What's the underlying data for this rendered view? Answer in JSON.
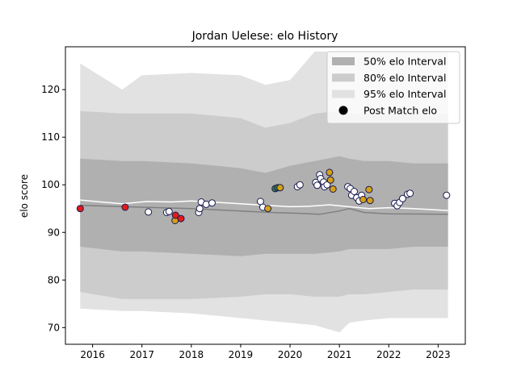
{
  "chart_data": {
    "type": "line",
    "title": "Jordan Uelese: elo History",
    "xlabel": "",
    "ylabel": "elo score",
    "xlim": [
      2015.45,
      2023.55
    ],
    "ylim": [
      66.5,
      129
    ],
    "x_ticks": [
      2016,
      2017,
      2018,
      2019,
      2020,
      2021,
      2022,
      2023
    ],
    "x_tick_labels": [
      "2016",
      "2017",
      "2018",
      "2019",
      "2020",
      "2021",
      "2022",
      "2023"
    ],
    "y_ticks": [
      70,
      80,
      90,
      100,
      110,
      120
    ],
    "y_tick_labels": [
      "70",
      "80",
      "90",
      "100",
      "110",
      "120"
    ],
    "grid": false,
    "legend_position": "top-right",
    "legend": [
      {
        "label": "50% elo Interval",
        "kind": "band",
        "color": "#b0b0b0"
      },
      {
        "label": "80% elo Interval",
        "kind": "band",
        "color": "#cccccc"
      },
      {
        "label": "95% elo Interval",
        "kind": "band",
        "color": "#e2e2e2"
      },
      {
        "label": "Post Match elo",
        "kind": "marker",
        "color": "#000000"
      }
    ],
    "colors": {
      "band95": "#e2e2e2",
      "band80": "#cccccc",
      "band50": "#b0b0b0",
      "mean_line": "#808080",
      "elo_line": "#ffffff",
      "marker_edge": "#1a1a4e",
      "win": "#ffffff",
      "loss": "#e31a1c",
      "draw_gold": "#d4a017",
      "draw_green": "#3a7d44"
    },
    "bands": {
      "x": [
        2015.75,
        2016.6,
        2017.0,
        2018.0,
        2019.0,
        2019.5,
        2020.0,
        2020.5,
        2021.0,
        2021.2,
        2021.5,
        2022.0,
        2022.5,
        2023.2
      ],
      "band95_upper": [
        125.5,
        120.0,
        123.0,
        123.5,
        123.0,
        121.0,
        122.0,
        128.0,
        128.0,
        128.0,
        128.0,
        128.0,
        128.0,
        128.0
      ],
      "band80_upper": [
        115.5,
        115.0,
        115.0,
        115.0,
        114.0,
        112.0,
        113.0,
        115.0,
        115.5,
        115.0,
        115.0,
        115.0,
        115.0,
        115.0
      ],
      "band50_upper": [
        105.5,
        105.0,
        105.0,
        104.5,
        103.5,
        102.5,
        104.0,
        105.0,
        106.0,
        105.5,
        105.0,
        105.0,
        104.5,
        104.5
      ],
      "band50_lower": [
        87.0,
        86.0,
        86.0,
        85.5,
        85.0,
        85.5,
        85.5,
        85.5,
        86.0,
        86.5,
        86.5,
        86.5,
        87.0,
        87.0
      ],
      "band80_lower": [
        77.5,
        76.0,
        76.0,
        76.0,
        76.5,
        77.0,
        77.0,
        76.5,
        76.5,
        77.0,
        77.0,
        77.5,
        78.0,
        78.0
      ],
      "band95_lower": [
        74.0,
        73.5,
        73.5,
        73.0,
        72.0,
        71.5,
        71.0,
        70.5,
        69.0,
        71.0,
        71.5,
        72.0,
        72.0,
        72.0
      ]
    },
    "series": [
      {
        "key": "mean",
        "x": [
          2015.75,
          2017.0,
          2018.0,
          2019.0,
          2019.6,
          2020.2,
          2020.6,
          2021.0,
          2021.2,
          2021.5,
          2022.0,
          2023.2
        ],
        "values": [
          95.7,
          95.3,
          95.0,
          94.5,
          94.2,
          94.0,
          93.8,
          94.5,
          95.0,
          94.2,
          93.9,
          93.8
        ]
      },
      {
        "key": "elo",
        "x": [
          2015.75,
          2016.6,
          2017.1,
          2017.6,
          2018.0,
          2018.4,
          2019.0,
          2019.5,
          2020.0,
          2020.4,
          2020.8,
          2021.0,
          2021.3,
          2021.6,
          2022.0,
          2022.5,
          2023.2
        ],
        "values": [
          96.8,
          96.0,
          96.5,
          96.4,
          96.6,
          96.4,
          96.0,
          95.7,
          95.4,
          95.5,
          95.8,
          95.6,
          95.3,
          95.0,
          95.2,
          95.0,
          94.6
        ]
      }
    ],
    "points": [
      {
        "x": 2015.75,
        "y": 95.0,
        "result": "loss"
      },
      {
        "x": 2016.66,
        "y": 95.3,
        "result": "loss"
      },
      {
        "x": 2017.13,
        "y": 94.3,
        "result": "win"
      },
      {
        "x": 2017.5,
        "y": 94.2,
        "result": "win"
      },
      {
        "x": 2017.55,
        "y": 94.4,
        "result": "win"
      },
      {
        "x": 2017.67,
        "y": 92.5,
        "result": "draw_gold"
      },
      {
        "x": 2017.68,
        "y": 93.6,
        "result": "loss"
      },
      {
        "x": 2017.79,
        "y": 92.9,
        "result": "loss"
      },
      {
        "x": 2018.15,
        "y": 94.2,
        "result": "win"
      },
      {
        "x": 2018.17,
        "y": 95.0,
        "result": "win"
      },
      {
        "x": 2018.2,
        "y": 96.4,
        "result": "win"
      },
      {
        "x": 2018.3,
        "y": 95.9,
        "result": "win"
      },
      {
        "x": 2018.42,
        "y": 96.2,
        "result": "win"
      },
      {
        "x": 2019.4,
        "y": 96.5,
        "result": "win"
      },
      {
        "x": 2019.45,
        "y": 95.3,
        "result": "win"
      },
      {
        "x": 2019.55,
        "y": 95.0,
        "result": "draw_gold"
      },
      {
        "x": 2019.7,
        "y": 99.2,
        "result": "draw_green"
      },
      {
        "x": 2019.75,
        "y": 99.4,
        "result": "draw_green"
      },
      {
        "x": 2019.8,
        "y": 99.4,
        "result": "draw_gold"
      },
      {
        "x": 2020.15,
        "y": 99.6,
        "result": "win"
      },
      {
        "x": 2020.2,
        "y": 100.0,
        "result": "win"
      },
      {
        "x": 2020.52,
        "y": 100.5,
        "result": "win"
      },
      {
        "x": 2020.55,
        "y": 99.9,
        "result": "win"
      },
      {
        "x": 2020.6,
        "y": 102.1,
        "result": "win"
      },
      {
        "x": 2020.62,
        "y": 101.3,
        "result": "win"
      },
      {
        "x": 2020.68,
        "y": 100.6,
        "result": "win"
      },
      {
        "x": 2020.7,
        "y": 99.6,
        "result": "win"
      },
      {
        "x": 2020.75,
        "y": 100.0,
        "result": "win"
      },
      {
        "x": 2020.8,
        "y": 102.6,
        "result": "draw_gold"
      },
      {
        "x": 2020.82,
        "y": 101.0,
        "result": "draw_gold"
      },
      {
        "x": 2020.87,
        "y": 99.1,
        "result": "draw_gold"
      },
      {
        "x": 2021.17,
        "y": 99.6,
        "result": "win"
      },
      {
        "x": 2021.22,
        "y": 99.2,
        "result": "win"
      },
      {
        "x": 2021.25,
        "y": 97.8,
        "result": "win"
      },
      {
        "x": 2021.3,
        "y": 98.6,
        "result": "win"
      },
      {
        "x": 2021.35,
        "y": 97.3,
        "result": "win"
      },
      {
        "x": 2021.4,
        "y": 96.6,
        "result": "win"
      },
      {
        "x": 2021.45,
        "y": 97.8,
        "result": "win"
      },
      {
        "x": 2021.48,
        "y": 96.9,
        "result": "draw_gold"
      },
      {
        "x": 2021.6,
        "y": 99.0,
        "result": "draw_gold"
      },
      {
        "x": 2021.62,
        "y": 96.7,
        "result": "draw_gold"
      },
      {
        "x": 2022.12,
        "y": 96.1,
        "result": "win"
      },
      {
        "x": 2022.17,
        "y": 95.6,
        "result": "win"
      },
      {
        "x": 2022.22,
        "y": 96.3,
        "result": "win"
      },
      {
        "x": 2022.28,
        "y": 97.1,
        "result": "win"
      },
      {
        "x": 2022.38,
        "y": 98.0,
        "result": "win"
      },
      {
        "x": 2022.43,
        "y": 98.2,
        "result": "win"
      },
      {
        "x": 2023.17,
        "y": 97.8,
        "result": "win"
      }
    ]
  }
}
